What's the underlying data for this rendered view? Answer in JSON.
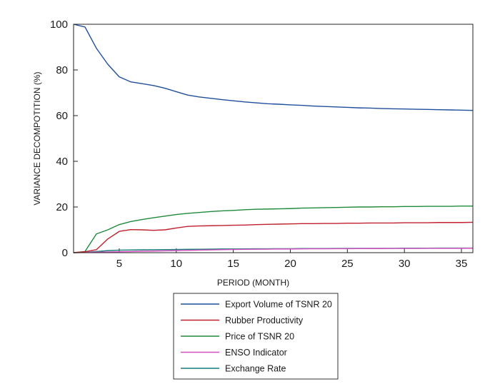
{
  "chart_data": {
    "type": "line",
    "xlabel": "PERIOD (MONTH)",
    "ylabel": "VARIANCE DECOMPOTITION (%)",
    "xlim": [
      1,
      36
    ],
    "ylim": [
      0,
      100
    ],
    "x_ticks": [
      5,
      10,
      15,
      20,
      25,
      30,
      35
    ],
    "y_ticks": [
      0,
      20,
      40,
      60,
      80,
      100
    ],
    "x_tick_labels": [
      "5",
      "10",
      "15",
      "20",
      "25",
      "30",
      "35"
    ],
    "y_tick_labels": [
      "0",
      "20",
      "40",
      "60",
      "80",
      "100"
    ],
    "grid": false,
    "legend_position": "bottom",
    "x": [
      1,
      2,
      3,
      4,
      5,
      6,
      7,
      8,
      9,
      10,
      11,
      12,
      13,
      14,
      15,
      16,
      17,
      18,
      19,
      20,
      21,
      22,
      23,
      24,
      25,
      26,
      27,
      28,
      29,
      30,
      31,
      32,
      33,
      34,
      35,
      36
    ],
    "series": [
      {
        "name": "Export Volume of TSNR 20",
        "color": "#1f4e9c",
        "values": [
          100,
          98.8,
          89.5,
          82.5,
          77,
          74.8,
          74,
          73.2,
          72,
          70.5,
          69,
          68.2,
          67.6,
          67,
          66.5,
          66,
          65.6,
          65.2,
          65,
          64.7,
          64.5,
          64.2,
          64,
          63.8,
          63.6,
          63.4,
          63.3,
          63.1,
          63,
          62.9,
          62.8,
          62.7,
          62.6,
          62.5,
          62.4,
          62.3
        ]
      },
      {
        "name": "Rubber Productivity",
        "color": "#c0202e",
        "values": [
          0,
          0.4,
          1.3,
          6,
          9.3,
          10.1,
          10,
          9.8,
          10,
          10.8,
          11.5,
          11.7,
          11.8,
          11.9,
          12,
          12.1,
          12.3,
          12.4,
          12.5,
          12.6,
          12.7,
          12.7,
          12.8,
          12.8,
          12.9,
          12.9,
          13,
          13,
          13,
          13.1,
          13.1,
          13.1,
          13.2,
          13.2,
          13.2,
          13.3
        ]
      },
      {
        "name": "Price of TSNR 20",
        "color": "#1e8a3c",
        "values": [
          0,
          0.5,
          8.2,
          10,
          12.3,
          13.6,
          14.5,
          15.3,
          16,
          16.7,
          17.2,
          17.6,
          18,
          18.3,
          18.5,
          18.8,
          19,
          19.1,
          19.2,
          19.3,
          19.5,
          19.6,
          19.7,
          19.8,
          19.9,
          20,
          20,
          20.1,
          20.1,
          20.2,
          20.2,
          20.3,
          20.3,
          20.3,
          20.4,
          20.4
        ]
      },
      {
        "name": "ENSO Indicator",
        "color": "#d64fc0",
        "values": [
          0,
          0.1,
          0.2,
          0.3,
          0.4,
          0.5,
          0.6,
          0.7,
          0.8,
          0.9,
          1,
          1.1,
          1.2,
          1.3,
          1.4,
          1.45,
          1.5,
          1.55,
          1.6,
          1.6,
          1.65,
          1.7,
          1.7,
          1.75,
          1.75,
          1.8,
          1.8,
          1.8,
          1.85,
          1.85,
          1.85,
          1.9,
          1.9,
          1.9,
          1.9,
          1.95
        ]
      },
      {
        "name": "Exchange Rate",
        "color": "#167a7a",
        "values": [
          0,
          0.1,
          0.5,
          0.9,
          1.1,
          1.2,
          1.25,
          1.3,
          1.35,
          1.4,
          1.45,
          1.5,
          1.55,
          1.6,
          1.6,
          1.65,
          1.7,
          1.7,
          1.75,
          1.75,
          1.8,
          1.8,
          1.8,
          1.85,
          1.85,
          1.9,
          1.9,
          1.9,
          1.9,
          1.95,
          1.95,
          1.95,
          2,
          2,
          2,
          2
        ]
      }
    ]
  }
}
